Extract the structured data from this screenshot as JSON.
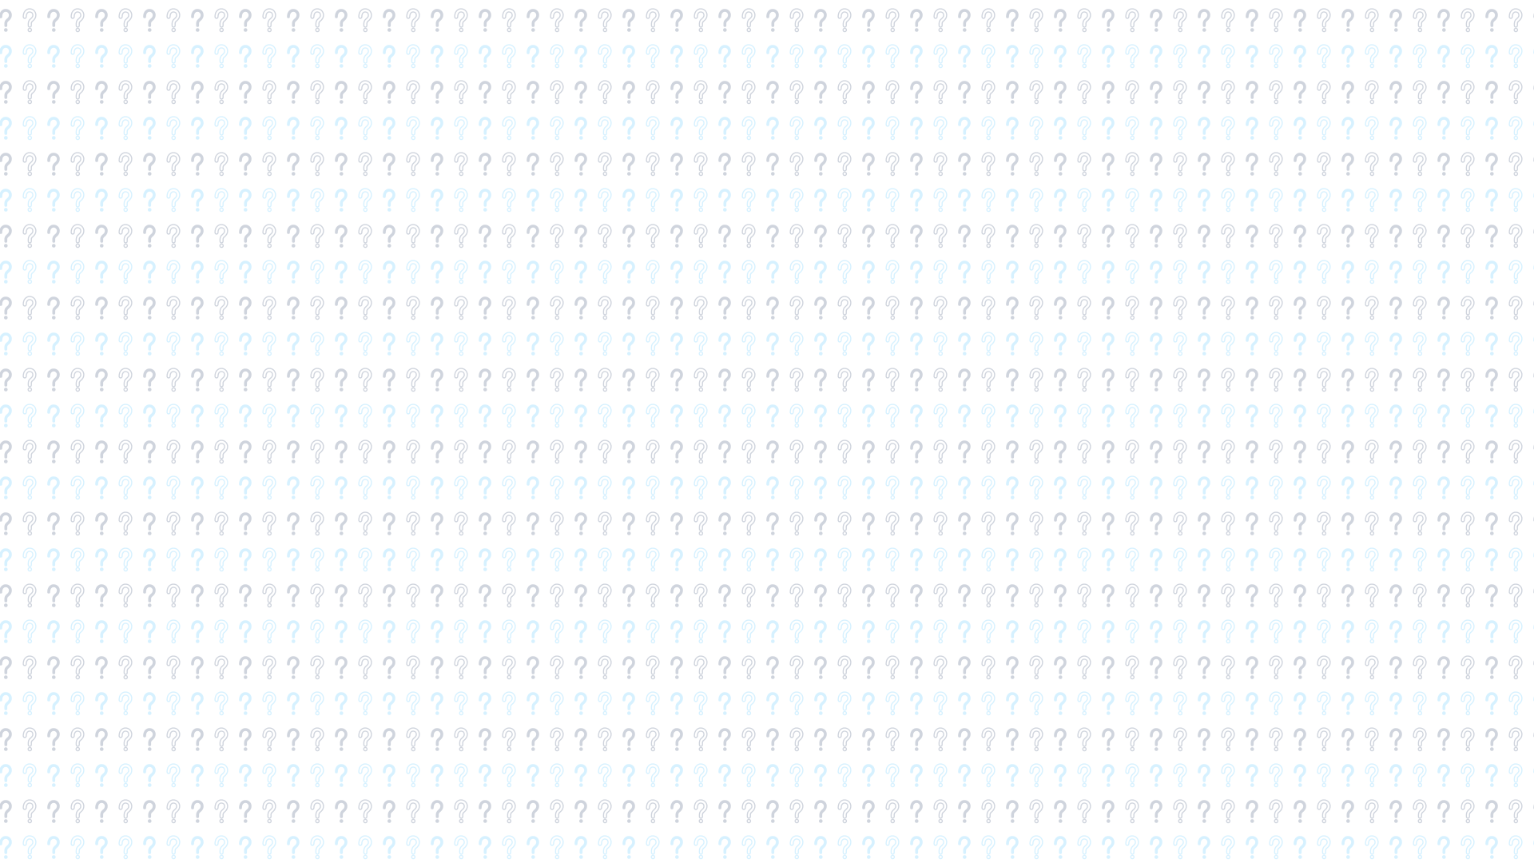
{
  "background": {
    "color": "#ffffff",
    "pattern_icon": "question-mark-icon",
    "grey_color": "#cfd4dd",
    "blue_color": "#d6f1ff",
    "row_pattern": [
      "blue",
      "grey"
    ],
    "style_pattern": [
      "filled",
      "outline"
    ]
  }
}
